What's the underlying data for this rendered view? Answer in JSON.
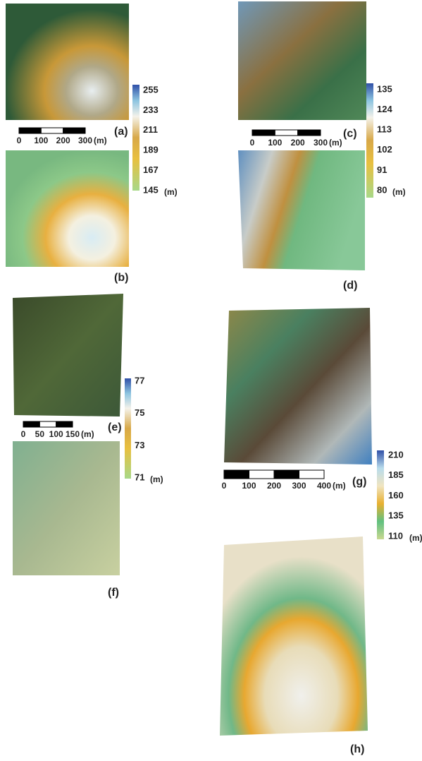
{
  "panels": [
    {
      "label": "(a)"
    },
    {
      "label": "(b)"
    },
    {
      "label": "(c)"
    },
    {
      "label": "(d)"
    },
    {
      "label": "(e)"
    },
    {
      "label": "(f)"
    },
    {
      "label": "(g)"
    },
    {
      "label": "(h)"
    }
  ],
  "colorbars": [
    {
      "ticks": [
        255,
        233,
        211,
        189,
        167,
        145
      ],
      "unit": "(m)"
    },
    {
      "ticks": [
        135,
        124,
        113,
        102,
        91,
        80
      ],
      "unit": "(m)"
    },
    {
      "ticks": [
        77,
        75,
        73,
        71
      ],
      "unit": "(m)"
    },
    {
      "ticks": [
        210,
        185,
        160,
        135,
        110
      ],
      "unit": "(m)"
    }
  ],
  "scale_bars": [
    {
      "ticks": [
        0,
        100,
        200,
        300
      ],
      "unit": "(m)"
    },
    {
      "ticks": [
        0,
        100,
        200,
        300
      ],
      "unit": "(m)"
    },
    {
      "ticks": [
        0,
        50,
        100,
        150
      ],
      "unit": "(m)"
    },
    {
      "ticks": [
        0,
        100,
        200,
        300,
        400
      ],
      "unit": "(m)"
    }
  ]
}
